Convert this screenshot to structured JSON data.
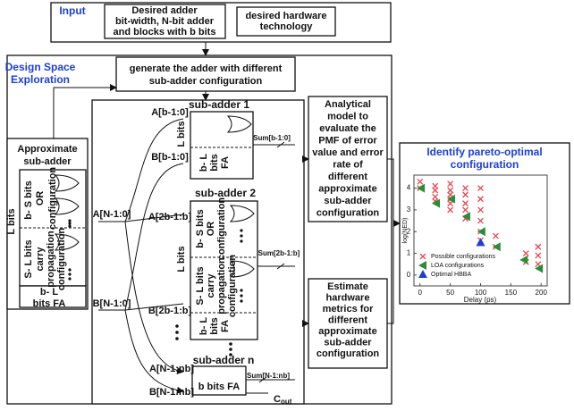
{
  "input": {
    "label": "Input",
    "adder_spec": [
      "Desired adder",
      "bit-width, N-bit adder",
      "and blocks with b bits"
    ],
    "technology": [
      "desired hardware",
      "technology"
    ]
  },
  "design_space": [
    "Design Space",
    "Exploration"
  ],
  "generate": [
    "generate the adder with different",
    "sub-adder configuration"
  ],
  "approximate": {
    "title": [
      "Approximate",
      "sub-adder"
    ],
    "l_bits": "L bits",
    "b_s_bits": "b- S bits",
    "or_config": [
      "OR",
      "configuration"
    ],
    "s_l_bits": "S- L bits",
    "carry_config": [
      "carry",
      "propagation",
      "configuration"
    ],
    "fa": [
      "b- L",
      "bits FA"
    ]
  },
  "inputs": {
    "a": "A[N-1:0]",
    "b": "B[N-1:0]"
  },
  "sub_adders": [
    {
      "title": "sub-adder 1",
      "a": "A[b-1:0]",
      "b": "B[b-1:0]",
      "sum": "Sum[b-1:0]",
      "l_bits": "L bits",
      "fa": [
        "b- L",
        "bits",
        "FA"
      ]
    },
    {
      "title": "sub-adder 2",
      "a": "A[2b-1:b]",
      "b": "B[2b-1:b]",
      "sum": "Sum[2b-1:b]",
      "l_bits": "L bits",
      "b_s_bits": "b- S bits",
      "or_config": [
        "OR",
        "configuration"
      ],
      "s_l_bits": "S- L bits",
      "carry_config": [
        "carry",
        "propagation",
        "configuration"
      ],
      "fa": [
        "b- L",
        "bits",
        "FA"
      ]
    },
    {
      "title": "sub-adder n",
      "a": "A[N-1:nb]",
      "b": "B[N-1:nb]",
      "sum": "Sum[N-1:nb]",
      "fa": "b bits FA",
      "cout": "C",
      "cout_sub": "out"
    }
  ],
  "analytical": [
    "Analytical",
    "model to",
    "evaluate the",
    "PMF of error",
    "value and error",
    "rate of",
    "different",
    "approximate",
    "sub-adder",
    "configuration"
  ],
  "hardware": [
    "Estimate",
    "hardware",
    "metrics for",
    "different",
    "approximate",
    "sub-adder",
    "configuration"
  ],
  "pareto": {
    "title": [
      "Identify pareto-optimal",
      "configuration"
    ],
    "x_label": "Delay (ps)",
    "y_label": "log(NED)",
    "xlim": [
      -10,
      210
    ],
    "ylim": [
      -0.5,
      4.6
    ],
    "xticks": [
      0,
      50,
      100,
      150,
      200
    ],
    "yticks": [
      0,
      1,
      2,
      3,
      4
    ],
    "series": [
      {
        "name": "Possible configurations",
        "marker": "x",
        "color": "#e8464f",
        "x": [
          0,
          0,
          25,
          25,
          25,
          25,
          50,
          50,
          50,
          50,
          50,
          50,
          75,
          75,
          75,
          75,
          75,
          100,
          100,
          100,
          100,
          100,
          100,
          125,
          125,
          175,
          175,
          195,
          195,
          195
        ],
        "values": [
          4.3,
          4.0,
          4.1,
          3.9,
          3.6,
          3.4,
          4.2,
          3.9,
          3.7,
          3.5,
          3.3,
          3.0,
          4.0,
          3.7,
          3.3,
          3.0,
          2.6,
          4.0,
          3.5,
          3.0,
          2.5,
          2.0,
          1.6,
          1.8,
          1.3,
          1.0,
          0.6,
          1.3,
          0.9,
          0.5
        ]
      },
      {
        "name": "LOA configurations",
        "marker": "triangle-left",
        "color": "#2e8b3a",
        "x": [
          2,
          27,
          52,
          77,
          102,
          127,
          172,
          197
        ],
        "values": [
          4.0,
          3.3,
          3.5,
          2.7,
          2.0,
          1.3,
          0.7,
          0.3
        ]
      },
      {
        "name": "Optimal HBBA",
        "marker": "triangle-up",
        "color": "#1f3fd0",
        "x": [
          100
        ],
        "values": [
          1.5
        ]
      }
    ]
  }
}
